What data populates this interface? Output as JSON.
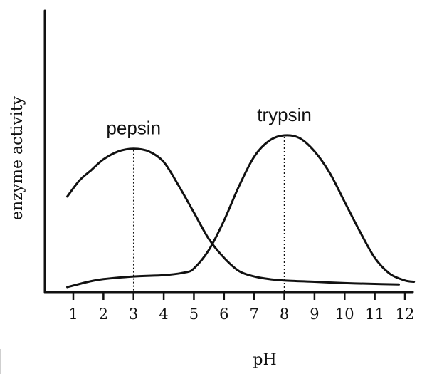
{
  "chart_data": {
    "type": "line",
    "xlabel": "pH",
    "ylabel": "enzyme activity",
    "xlim": [
      0.2,
      12.4
    ],
    "ylim": [
      0,
      100
    ],
    "xticks": [
      "1",
      "2",
      "3",
      "4",
      "5",
      "6",
      "7",
      "8",
      "9",
      "10",
      "11",
      "12"
    ],
    "grid": false,
    "series": [
      {
        "name": "pepsin",
        "peak_x": 3,
        "x": [
          0.8,
          1.2,
          1.6,
          2.0,
          2.5,
          3.0,
          3.5,
          4.0,
          4.5,
          5.0,
          5.5,
          6.0,
          6.5,
          7.0,
          7.5,
          8.0,
          9.0,
          10.0,
          11.0,
          11.8
        ],
        "y": [
          34,
          40,
          44,
          48,
          51,
          52,
          51,
          47,
          38,
          28,
          18,
          11,
          6,
          4,
          3,
          2.5,
          2,
          1.5,
          1.2,
          1
        ]
      },
      {
        "name": "trypsin",
        "peak_x": 8,
        "x": [
          0.8,
          1.5,
          2.0,
          3.0,
          4.0,
          4.7,
          5.0,
          5.5,
          6.0,
          6.5,
          7.0,
          7.5,
          8.0,
          8.5,
          9.0,
          9.5,
          10.0,
          10.5,
          11.0,
          11.5,
          12.0,
          12.3
        ],
        "y": [
          0,
          2,
          3,
          4,
          4.5,
          5.5,
          7,
          14,
          25,
          38,
          49,
          55,
          57,
          56,
          51,
          43,
          32,
          21,
          11,
          5,
          2.5,
          2
        ]
      }
    ]
  }
}
